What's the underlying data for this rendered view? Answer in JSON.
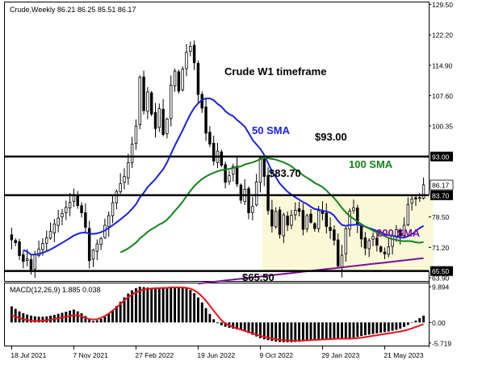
{
  "symbol_header": "Crude,Weekly  86.21 86.25 85.51 86.17",
  "chart_title": "Crude W1 timeframe",
  "colors": {
    "up": "#000000",
    "down": "#000000",
    "up_fill": "#ffffff",
    "sma50": "#1a22e0",
    "sma100": "#13851a",
    "sma200": "#7a1294",
    "zone": "#fbf8d8",
    "macd_signal": "#e8141a",
    "level": "#000000"
  },
  "chart_data": {
    "type": "candlestick",
    "timeframe": "Weekly",
    "price_axis": {
      "ylim": [
        63.5,
        129.8
      ],
      "ticks": [
        129.5,
        122.2,
        114.9,
        107.6,
        100.35,
        93.0,
        86.17,
        83.7,
        78.5,
        71.2,
        65.5,
        63.9
      ],
      "tick_labels": [
        "129.50",
        "122.20",
        "114.90",
        "107.60",
        "100.35",
        "93.00",
        "86.17",
        "83.70",
        "78.50",
        "71.20",
        "65.50",
        "63.90"
      ]
    },
    "x_axis": {
      "tick_labels": [
        "18 Jul 2021",
        "7 Nov 2021",
        "27 Feb 2022",
        "19 Jun 2022",
        "9 Oct 2022",
        "29 Jan 2023",
        "21 May 2023"
      ],
      "tick_index": [
        0,
        16,
        32,
        48,
        64,
        80,
        96
      ]
    },
    "current_price": 86.17,
    "horizontal_levels": [
      {
        "value": 93.0,
        "label": "$93.00",
        "axis_label": "93.00"
      },
      {
        "value": 83.7,
        "label": "$83.70",
        "axis_label": "83.70"
      },
      {
        "value": 65.5,
        "label": "$65.50",
        "axis_label": "65.50"
      }
    ],
    "range_zone": {
      "start_index": 65,
      "end_index": 108,
      "low": 65.5,
      "high": 83.7
    },
    "closes": [
      73.0,
      72.3,
      69.2,
      67.8,
      68.4,
      65.9,
      69.5,
      70.8,
      72.1,
      73.5,
      75.0,
      76.8,
      78.2,
      79.3,
      80.8,
      82.0,
      83.6,
      81.2,
      79.5,
      76.0,
      68.0,
      70.5,
      72.0,
      73.3,
      76.5,
      78.8,
      81.9,
      84.6,
      86.5,
      88.2,
      91.5,
      96.0,
      100.3,
      112.0,
      104.0,
      108.5,
      103.2,
      99.7,
      104.5,
      98.3,
      102.0,
      110.1,
      113.5,
      108.7,
      114.0,
      118.0,
      119.4,
      115.5,
      107.9,
      104.6,
      98.6,
      96.0,
      91.9,
      94.3,
      90.9,
      86.8,
      88.4,
      90.6,
      86.4,
      82.5,
      85.1,
      79.5,
      81.0,
      86.9,
      92.6,
      88.2,
      80.0,
      76.3,
      79.8,
      74.3,
      79.0,
      76.5,
      78.9,
      80.1,
      79.8,
      75.5,
      78.8,
      77.2,
      75.7,
      80.0,
      79.3,
      76.2,
      75.2,
      72.9,
      66.7,
      69.3,
      75.7,
      79.9,
      80.7,
      76.6,
      73.2,
      71.0,
      72.8,
      73.8,
      71.7,
      70.2,
      69.6,
      71.3,
      73.9,
      75.4,
      74.0,
      76.5,
      81.5,
      82.8,
      82.8,
      83.0,
      86.2
    ],
    "sma50": [
      null,
      null,
      null,
      null,
      null,
      null,
      null,
      null,
      null,
      null,
      null,
      null,
      null,
      null,
      null,
      null,
      null,
      null,
      null,
      null,
      null,
      null,
      null,
      null,
      null,
      null,
      null,
      null,
      null,
      null,
      null,
      null,
      null,
      null,
      null,
      null,
      null,
      null,
      null,
      null,
      null,
      null,
      null,
      null,
      null,
      null,
      null,
      null,
      null,
      null,
      85.0,
      85.4,
      85.9,
      86.4,
      86.9,
      87.2,
      87.5,
      87.8,
      88.0,
      88.1,
      88.2,
      88.2,
      88.2,
      88.3,
      88.4,
      88.6,
      88.4,
      88.2,
      88.0,
      87.8,
      87.6,
      87.4,
      87.2,
      87.0,
      86.7,
      86.4,
      86.1,
      85.8,
      85.5,
      85.2,
      84.9,
      84.6,
      84.3,
      83.9,
      83.3,
      82.8,
      82.4,
      81.9,
      81.3,
      80.7,
      80.2,
      79.7,
      79.3,
      78.9,
      78.6,
      78.3,
      78.1,
      77.9,
      77.8,
      77.7,
      77.7,
      77.7,
      77.7,
      77.7,
      77.8,
      77.9,
      78.0
    ],
    "sma100": [
      null,
      null,
      null,
      null,
      null,
      null,
      null,
      null,
      null,
      null,
      null,
      null,
      null,
      null,
      null,
      null,
      null,
      null,
      null,
      null,
      null,
      null,
      null,
      null,
      null,
      null,
      null,
      null,
      null,
      null,
      null,
      null,
      null,
      null,
      null,
      null,
      null,
      null,
      null,
      null,
      null,
      null,
      null,
      null,
      null,
      null,
      null,
      null,
      null,
      null,
      null,
      null,
      null,
      null,
      null,
      null,
      null,
      null,
      null,
      null,
      null,
      null,
      null,
      null,
      null,
      null,
      null,
      null,
      null,
      null,
      null,
      null,
      null,
      null,
      null,
      null,
      null,
      null,
      null,
      null,
      null,
      null,
      null,
      null,
      null,
      null,
      null,
      null,
      null,
      null,
      null,
      null,
      null,
      null,
      null,
      null,
      null,
      null,
      null,
      null,
      84.6,
      84.7,
      84.8,
      84.9,
      85.0,
      85.0,
      85.1
    ],
    "sma200": [
      null,
      null,
      null,
      null,
      null,
      null,
      null,
      null,
      null,
      null,
      null,
      null,
      null,
      null,
      null,
      null,
      null,
      null,
      null,
      null,
      null,
      null,
      null,
      null,
      null,
      null,
      null,
      null,
      null,
      null,
      null,
      null,
      null,
      null,
      null,
      null,
      null,
      null,
      null,
      null,
      null,
      null,
      null,
      null,
      null,
      null,
      null,
      null,
      null,
      null,
      null,
      null,
      null,
      null,
      null,
      null,
      null,
      null,
      null,
      null,
      null,
      null,
      null,
      null,
      null,
      null,
      null,
      null,
      null,
      null,
      null,
      null,
      null,
      null,
      null,
      null,
      null,
      null,
      null,
      null,
      null,
      null,
      null,
      null,
      null,
      null,
      null,
      null,
      null,
      null,
      null,
      null,
      null,
      null,
      null,
      null,
      null,
      null,
      null,
      null,
      null,
      null,
      null,
      null,
      null,
      null,
      null
    ],
    "series_labels": [
      {
        "name": "50 SMA",
        "color": "#1a22e0"
      },
      {
        "name": "100 SMA",
        "color": "#13851a"
      },
      {
        "name": "200 SMA",
        "color": "#7a1294"
      }
    ],
    "macd": {
      "label": "MACD(12,26,9) 1.885 0.038",
      "ylim": [
        -6.2,
        10.6
      ],
      "ticks": [
        9.894,
        0.0,
        -5.719
      ],
      "tick_labels": [
        "9.894",
        "0.00",
        "-5.719"
      ],
      "histogram_profile": [
        0.45,
        0.38,
        0.31,
        0.26,
        0.22,
        0.19,
        0.17,
        0.16,
        0.16,
        0.17,
        0.19,
        0.21,
        0.24,
        0.27,
        0.3,
        0.33,
        0.36,
        0.31,
        0.26,
        0.18,
        0.08,
        0.04,
        0.06,
        0.1,
        0.16,
        0.24,
        0.34,
        0.46,
        0.58,
        0.7,
        0.81,
        0.9,
        0.96,
        1.0,
        0.99,
        0.98,
        0.97,
        0.96,
        0.96,
        0.97,
        0.98,
        0.99,
        1.0,
        0.99,
        0.98,
        0.96,
        0.91,
        0.82,
        0.7,
        0.56,
        0.4,
        0.24,
        0.09,
        -0.04,
        -0.14,
        -0.21,
        -0.26,
        -0.3,
        -0.34,
        -0.38,
        -0.44,
        -0.52,
        -0.6,
        -0.68,
        -0.76,
        -0.82,
        -0.86,
        -0.9,
        -0.93,
        -0.95,
        -0.96,
        -0.96,
        -0.96,
        -0.95,
        -0.94,
        -0.92,
        -0.9,
        -0.88,
        -0.86,
        -0.84,
        -0.82,
        -0.8,
        -0.78,
        -0.77,
        -0.78,
        -0.8,
        -0.8,
        -0.78,
        -0.74,
        -0.7,
        -0.66,
        -0.62,
        -0.59,
        -0.56,
        -0.53,
        -0.5,
        -0.47,
        -0.44,
        -0.4,
        -0.36,
        -0.3,
        -0.22,
        -0.12,
        -0.02,
        0.05,
        0.12,
        0.19
      ],
      "signal_profile": [
        0.2,
        0.16,
        0.12,
        0.09,
        0.07,
        0.05,
        0.04,
        0.04,
        0.05,
        0.06,
        0.08,
        0.1,
        0.12,
        0.14,
        0.16,
        0.18,
        0.2,
        0.19,
        0.17,
        0.13,
        0.09,
        0.08,
        0.09,
        0.13,
        0.18,
        0.25,
        0.33,
        0.42,
        0.52,
        0.62,
        0.71,
        0.78,
        0.84,
        0.89,
        0.92,
        0.94,
        0.95,
        0.96,
        0.96,
        0.97,
        0.97,
        0.98,
        0.98,
        0.98,
        0.98,
        0.97,
        0.95,
        0.9,
        0.83,
        0.73,
        0.61,
        0.47,
        0.33,
        0.19,
        0.06,
        -0.05,
        -0.14,
        -0.22,
        -0.29,
        -0.35,
        -0.41,
        -0.47,
        -0.53,
        -0.59,
        -0.65,
        -0.7,
        -0.74,
        -0.78,
        -0.81,
        -0.84,
        -0.86,
        -0.87,
        -0.88,
        -0.88,
        -0.88,
        -0.88,
        -0.87,
        -0.86,
        -0.85,
        -0.84,
        -0.83,
        -0.82,
        -0.81,
        -0.8,
        -0.79,
        -0.79,
        -0.79,
        -0.79,
        -0.78,
        -0.76,
        -0.74,
        -0.71,
        -0.68,
        -0.65,
        -0.62,
        -0.59,
        -0.56,
        -0.53,
        -0.5,
        -0.47,
        -0.44,
        -0.4,
        -0.35,
        -0.29,
        -0.22,
        -0.15,
        -0.08
      ]
    }
  }
}
